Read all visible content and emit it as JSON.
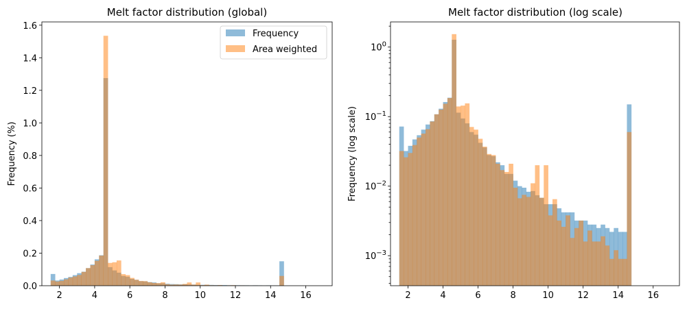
{
  "colors": {
    "frequency": "#1f77b4",
    "area_weighted": "#ff7f0e"
  },
  "chart_data": [
    {
      "type": "bar",
      "title": "Melt factor distribution (global)",
      "xlabel": "",
      "ylabel": "Frequency (%)",
      "xlim": [
        1.0,
        17.5
      ],
      "ylim": [
        0,
        1.62
      ],
      "yscale": "linear",
      "xticks": [
        2,
        4,
        6,
        8,
        10,
        12,
        14,
        16
      ],
      "xtick_labels": [
        "2",
        "4",
        "6",
        "8",
        "10",
        "12",
        "14",
        "16"
      ],
      "yticks": [
        0.0,
        0.2,
        0.4,
        0.6,
        0.8,
        1.0,
        1.2,
        1.4,
        1.6
      ],
      "ytick_labels": [
        "0.0",
        "0.2",
        "0.4",
        "0.6",
        "0.8",
        "1.0",
        "1.2",
        "1.4",
        "1.6"
      ],
      "bin_start": 1.5,
      "bin_width": 0.25,
      "legend": {
        "position": "top-right",
        "entries": [
          "Frequency",
          "Area weighted"
        ]
      },
      "series": [
        {
          "name": "Frequency",
          "values": [
            0.072,
            0.032,
            0.038,
            0.047,
            0.054,
            0.065,
            0.077,
            0.086,
            0.108,
            0.13,
            0.162,
            0.187,
            1.275,
            0.114,
            0.094,
            0.08,
            0.06,
            0.055,
            0.042,
            0.036,
            0.028,
            0.027,
            0.022,
            0.02,
            0.015,
            0.015,
            0.012,
            0.01,
            0.0095,
            0.0083,
            0.0085,
            0.0074,
            0.0068,
            0.0055,
            0.0055,
            0.0055,
            0.0048,
            0.0042,
            0.0042,
            0.0042,
            0.0032,
            0.0032,
            0.0032,
            0.0028,
            0.0028,
            0.0025,
            0.0028,
            0.0025,
            0.0022,
            0.0025,
            0.0022,
            0.0022,
            0.15
          ]
        },
        {
          "name": "Area weighted",
          "values": [
            0.032,
            0.026,
            0.03,
            0.039,
            0.05,
            0.057,
            0.066,
            0.085,
            0.108,
            0.126,
            0.153,
            0.185,
            1.535,
            0.14,
            0.144,
            0.155,
            0.071,
            0.065,
            0.048,
            0.037,
            0.029,
            0.028,
            0.021,
            0.017,
            0.016,
            0.021,
            0.0095,
            0.0067,
            0.0075,
            0.007,
            0.011,
            0.02,
            0.0068,
            0.02,
            0.0038,
            0.0065,
            0.0032,
            0.0026,
            0.0038,
            0.0018,
            0.0025,
            0.0032,
            0.0016,
            0.0023,
            0.0016,
            0.0016,
            0.0019,
            0.0014,
            0.0009,
            0.0012,
            0.0009,
            0.0009,
            0.06
          ]
        }
      ]
    },
    {
      "type": "bar",
      "title": "Melt factor distribution (log scale)",
      "xlabel": "",
      "ylabel": "Frequency (log scale)",
      "xlim": [
        1.0,
        17.5
      ],
      "ylim": [
        0.00037,
        2.3
      ],
      "yscale": "log",
      "xticks": [
        2,
        4,
        6,
        8,
        10,
        12,
        14,
        16
      ],
      "xtick_labels": [
        "2",
        "4",
        "6",
        "8",
        "10",
        "12",
        "14",
        "16"
      ],
      "yticks": [
        0.001,
        0.01,
        0.1,
        1
      ],
      "ytick_labels": [
        "10",
        "10",
        "10",
        "10"
      ],
      "ytick_exponents": [
        "−3",
        "−2",
        "−1",
        "0"
      ],
      "bin_start": 1.5,
      "bin_width": 0.25,
      "legend": null,
      "series_ref": "same as chart 0"
    }
  ]
}
